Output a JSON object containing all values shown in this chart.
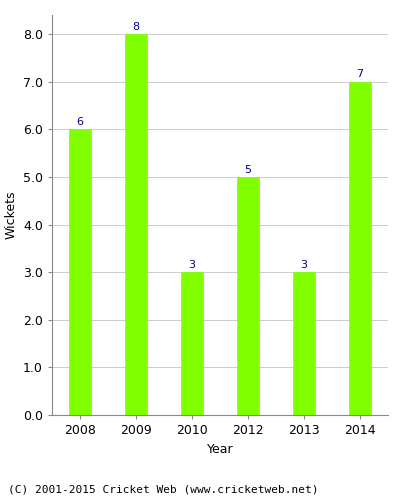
{
  "categories": [
    "2008",
    "2009",
    "2010",
    "2012",
    "2013",
    "2014"
  ],
  "values": [
    6,
    8,
    3,
    5,
    3,
    7
  ],
  "bar_color": "#7fff00",
  "label_color": "#00008b",
  "ylabel": "Wickets",
  "xlabel": "Year",
  "ylim": [
    0.0,
    8.4
  ],
  "yticks": [
    0.0,
    1.0,
    2.0,
    3.0,
    4.0,
    5.0,
    6.0,
    7.0,
    8.0
  ],
  "footnote": "(C) 2001-2015 Cricket Web (www.cricketweb.net)",
  "label_fontsize": 8,
  "axis_label_fontsize": 9,
  "tick_fontsize": 9,
  "footnote_fontsize": 8,
  "bar_width": 0.4
}
